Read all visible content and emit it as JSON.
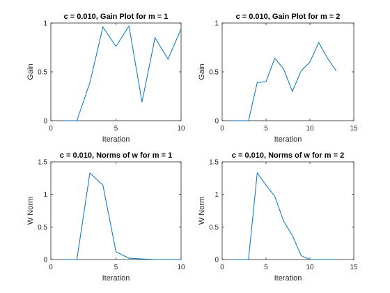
{
  "chart_data": [
    {
      "type": "line",
      "title": "c = 0.010, Gain Plot for m = 1",
      "xlabel": "Iteration",
      "ylabel": "Gain",
      "xlim": [
        0,
        10
      ],
      "ylim": [
        0,
        1
      ],
      "xticks": [
        0,
        5,
        10
      ],
      "yticks": [
        0,
        0.5,
        1
      ],
      "grid": false,
      "color": "#0072BD",
      "x": [
        1,
        2,
        3,
        4,
        5,
        6,
        7,
        8,
        9,
        10
      ],
      "y": [
        0,
        0,
        0.39,
        0.96,
        0.76,
        0.97,
        0.19,
        0.85,
        0.63,
        0.94
      ]
    },
    {
      "type": "line",
      "title": "c = 0.010, Gain Plot for m = 2",
      "xlabel": "Iteration",
      "ylabel": "Gain",
      "xlim": [
        0,
        15
      ],
      "ylim": [
        0,
        1
      ],
      "xticks": [
        0,
        5,
        10,
        15
      ],
      "yticks": [
        0,
        0.5,
        1
      ],
      "grid": false,
      "color": "#0072BD",
      "x": [
        1,
        2,
        3,
        4,
        5,
        6,
        7,
        8,
        9,
        10,
        11,
        12,
        13
      ],
      "y": [
        0,
        0,
        0,
        0.39,
        0.4,
        0.64,
        0.53,
        0.3,
        0.51,
        0.6,
        0.8,
        0.64,
        0.51
      ]
    },
    {
      "type": "line",
      "title": "c = 0.010, Norms of w for m = 1",
      "xlabel": "Iteration",
      "ylabel": "W Norm",
      "xlim": [
        0,
        10
      ],
      "ylim": [
        0,
        1.5
      ],
      "xticks": [
        0,
        5,
        10
      ],
      "yticks": [
        0,
        0.5,
        1,
        1.5
      ],
      "grid": false,
      "color": "#0072BD",
      "x": [
        1,
        2,
        3,
        4,
        5,
        6,
        7,
        8,
        9,
        10
      ],
      "y": [
        0,
        0,
        1.33,
        1.14,
        0.12,
        0.02,
        0.01,
        0,
        0,
        0
      ]
    },
    {
      "type": "line",
      "title": "c = 0.010, Norms of w for m = 2",
      "xlabel": "Iteration",
      "ylabel": "W Norm",
      "xlim": [
        0,
        15
      ],
      "ylim": [
        0,
        1.5
      ],
      "xticks": [
        0,
        5,
        10,
        15
      ],
      "yticks": [
        0,
        0.5,
        1,
        1.5
      ],
      "grid": false,
      "color": "#0072BD",
      "x": [
        1,
        2,
        3,
        4,
        5,
        6,
        7,
        8,
        9,
        10,
        11,
        12,
        13
      ],
      "y": [
        0,
        0,
        0,
        1.33,
        1.14,
        0.97,
        0.59,
        0.37,
        0.06,
        0,
        0,
        0,
        0
      ]
    }
  ]
}
